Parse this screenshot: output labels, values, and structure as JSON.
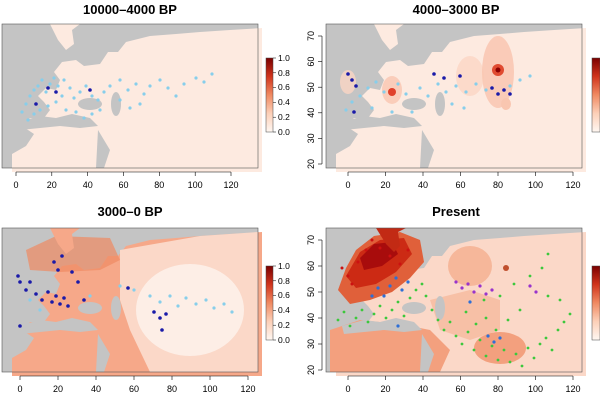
{
  "figure": {
    "panels": [
      {
        "id": "p1",
        "title": "10000–4000 BP",
        "x_ticks": [
          "0",
          "20",
          "40",
          "60",
          "80",
          "100",
          "120"
        ],
        "y_ticks": [],
        "colorbar": [
          "0.0",
          "0.2",
          "0.4",
          "0.6",
          "0.8",
          "1.0"
        ]
      },
      {
        "id": "p2",
        "title": "4000–3000 BP",
        "x_ticks": [
          "0",
          "20",
          "40",
          "60",
          "80",
          "100",
          "120"
        ],
        "y_ticks": [
          "20",
          "30",
          "40",
          "50",
          "60",
          "70"
        ],
        "colorbar": []
      },
      {
        "id": "p3",
        "title": "3000–0 BP",
        "x_ticks": [
          "0",
          "20",
          "40",
          "60",
          "80",
          "100",
          "120"
        ],
        "y_ticks": [],
        "colorbar": [
          "0.0",
          "0.2",
          "0.4",
          "0.6",
          "0.8",
          "1.0"
        ]
      },
      {
        "id": "p4",
        "title": "Present",
        "x_ticks": [
          "0",
          "20",
          "40",
          "60",
          "80",
          "100",
          "120"
        ],
        "y_ticks": [
          "20",
          "30",
          "40",
          "50",
          "60",
          "70"
        ],
        "colorbar": []
      }
    ],
    "colors": {
      "ocean": "#c4c4c4",
      "land": "#fdeae0",
      "high": "#b22222",
      "sample_light": "#87ceeb",
      "sample_dark": "#1a1aa8",
      "green": "#3cc83c",
      "purple": "#9933cc"
    }
  },
  "chart_data": {
    "type": "heatmap",
    "xlim": [
      -15,
      125
    ],
    "ylim": [
      18,
      76
    ],
    "panels": [
      {
        "title": "10000–4000 BP",
        "x_ticks": [
          0,
          20,
          40,
          60,
          80,
          100,
          120
        ]
      },
      {
        "title": "4000–3000 BP",
        "x_ticks": [
          0,
          20,
          40,
          60,
          80,
          100,
          120
        ],
        "y_ticks": [
          20,
          30,
          40,
          50,
          60,
          70
        ]
      },
      {
        "title": "3000–0 BP",
        "x_ticks": [
          0,
          20,
          40,
          60,
          80,
          100,
          120
        ]
      },
      {
        "title": "Present",
        "x_ticks": [
          0,
          20,
          40,
          60,
          80,
          100,
          120
        ],
        "y_ticks": [
          20,
          30,
          40,
          50,
          60,
          70
        ]
      }
    ],
    "colorbar": {
      "range": [
        0,
        1
      ],
      "ticks": [
        0,
        0.2,
        0.4,
        0.6,
        0.8,
        1.0
      ]
    }
  }
}
